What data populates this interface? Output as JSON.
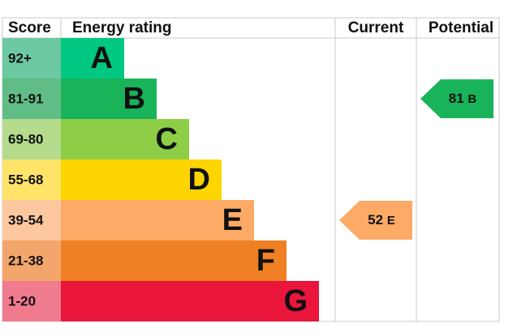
{
  "header": {
    "score": "Score",
    "rating": "Energy rating",
    "current": "Current",
    "potential": "Potential"
  },
  "bands": [
    {
      "score": "92+",
      "letter": "A",
      "color": "#00c781",
      "score_color": "#6cc9a1"
    },
    {
      "score": "81-91",
      "letter": "B",
      "color": "#19b459",
      "score_color": "#60bd86"
    },
    {
      "score": "69-80",
      "letter": "C",
      "color": "#8dce46",
      "score_color": "#b4dc8c"
    },
    {
      "score": "55-68",
      "letter": "D",
      "color": "#ffd500",
      "score_color": "#ffe469"
    },
    {
      "score": "39-54",
      "letter": "E",
      "color": "#fcaa65",
      "score_color": "#fdc8a0"
    },
    {
      "score": "21-38",
      "letter": "F",
      "color": "#ef8023",
      "score_color": "#f3a66b"
    },
    {
      "score": "1-20",
      "letter": "G",
      "color": "#e9153b",
      "score_color": "#f07a8e"
    }
  ],
  "current": {
    "value": 52,
    "letter": "E",
    "color": "#fcaa65"
  },
  "potential": {
    "value": 81,
    "letter": "B",
    "color": "#19b459"
  }
}
